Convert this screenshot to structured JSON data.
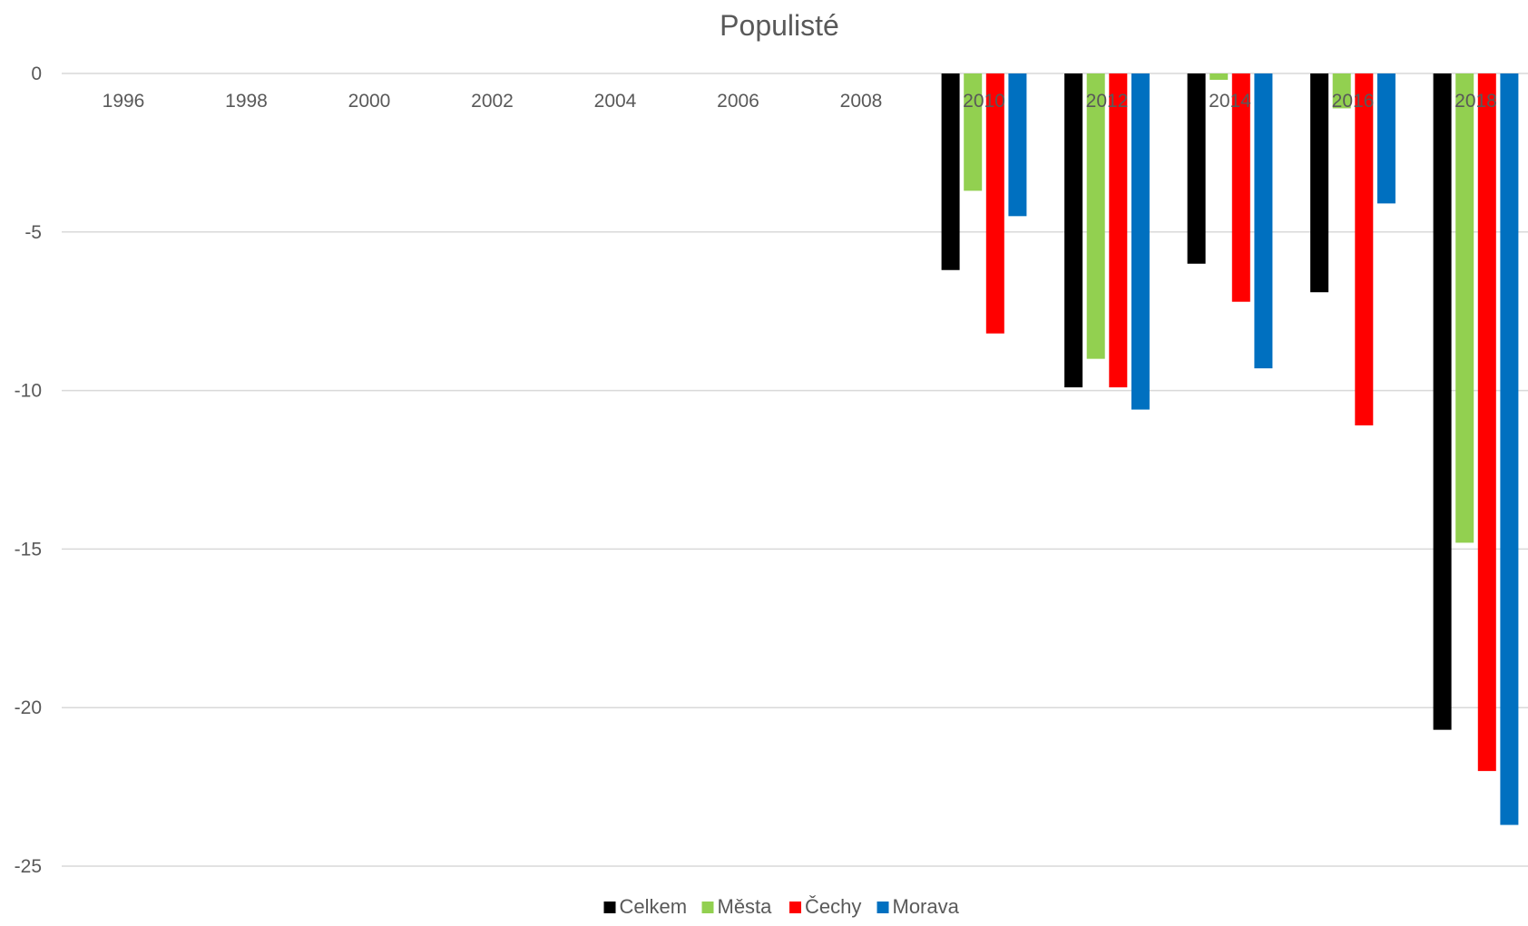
{
  "chart_data": {
    "type": "bar",
    "title": "Populisté",
    "xlabel": "",
    "ylabel": "",
    "ylim": [
      -25,
      0
    ],
    "yticks": [
      0,
      -5,
      -10,
      -15,
      -20,
      -25
    ],
    "grid": true,
    "legend_position": "bottom",
    "categories": [
      "1996",
      "1998",
      "2000",
      "2002",
      "2004",
      "2006",
      "2008",
      "2010",
      "2012",
      "2014",
      "2016",
      "2018"
    ],
    "series": [
      {
        "name": "Celkem",
        "color": "#000000",
        "values": [
          null,
          null,
          null,
          null,
          null,
          null,
          null,
          -6.2,
          -9.9,
          -6.0,
          -6.9,
          -20.7
        ]
      },
      {
        "name": "Města",
        "color": "#92d050",
        "values": [
          null,
          null,
          null,
          null,
          null,
          null,
          null,
          -3.7,
          -9.0,
          -0.2,
          -1.1,
          -14.8
        ]
      },
      {
        "name": "Čechy",
        "color": "#ff0000",
        "values": [
          null,
          null,
          null,
          null,
          null,
          null,
          null,
          -8.2,
          -9.9,
          -7.2,
          -11.1,
          -22.0
        ]
      },
      {
        "name": "Morava",
        "color": "#0070c0",
        "values": [
          null,
          null,
          null,
          null,
          null,
          null,
          null,
          -4.5,
          -10.6,
          -9.3,
          -4.1,
          -23.7
        ]
      }
    ]
  }
}
